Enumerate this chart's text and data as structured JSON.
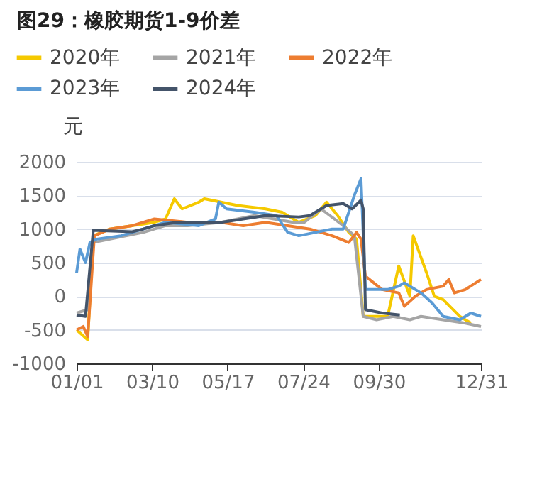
{
  "chart_data": {
    "type": "line",
    "title": "图29：橡胶期货1-9价差",
    "ylabel": "元",
    "xlim": [
      "--01-01",
      "--12-31"
    ],
    "xticks": [
      {
        "value": "--01-01",
        "label": "01/01"
      },
      {
        "value": "--03-10",
        "label": "03/10"
      },
      {
        "value": "--05-17",
        "label": "05/17"
      },
      {
        "value": "--07-24",
        "label": "07/24"
      },
      {
        "value": "--09-30",
        "label": "09/30"
      },
      {
        "value": "--12-31",
        "label": "12/31"
      }
    ],
    "ylim": [
      -1000,
      2000
    ],
    "yticks": [
      -1000,
      -500,
      0,
      500,
      1000,
      1500,
      2000
    ],
    "grid": "y",
    "legend": "top",
    "marker": "none",
    "line_style": "solid",
    "series": [
      {
        "name": "2020年",
        "color": "#f5c900",
        "x": [
          "--01-01",
          "--01-11",
          "--01-16",
          "--01-31",
          "--02-20",
          "--03-12",
          "--03-22",
          "--03-30",
          "--04-06",
          "--04-21",
          "--04-26",
          "--05-11",
          "--05-26",
          "--06-20",
          "--07-05",
          "--07-20",
          "--08-04",
          "--08-14",
          "--08-24",
          "--09-03",
          "--09-10",
          "--09-16",
          "--10-08",
          "--10-18",
          "--10-28",
          "--10-31",
          "--11-12",
          "--11-19",
          "--11-27",
          "--12-12",
          "--12-22"
        ],
        "values": [
          -500,
          -650,
          900,
          1000,
          1050,
          1100,
          1150,
          1450,
          1300,
          1400,
          1450,
          1400,
          1350,
          1300,
          1250,
          1100,
          1200,
          1400,
          1200,
          950,
          850,
          -300,
          -300,
          450,
          0,
          900,
          350,
          0,
          -50,
          -300,
          -400
        ]
      },
      {
        "name": "2021年",
        "color": "#a5a5a5",
        "x": [
          "--01-01",
          "--01-11",
          "--01-16",
          "--01-31",
          "--02-15",
          "--03-02",
          "--03-22",
          "--04-11",
          "--05-11",
          "--06-10",
          "--07-15",
          "--07-25",
          "--08-09",
          "--08-29",
          "--09-08",
          "--09-16",
          "--09-28",
          "--10-13",
          "--10-28",
          "--11-07",
          "--11-27",
          "--12-17",
          "--12-31"
        ],
        "values": [
          -250,
          -200,
          800,
          850,
          900,
          950,
          1050,
          1050,
          1100,
          1200,
          1100,
          1100,
          1300,
          1050,
          900,
          -300,
          -350,
          -300,
          -350,
          -300,
          -350,
          -400,
          -450
        ]
      },
      {
        "name": "2022年",
        "color": "#ed7d31",
        "x": [
          "--01-01",
          "--01-07",
          "--01-11",
          "--01-17",
          "--01-31",
          "--02-20",
          "--03-12",
          "--04-11",
          "--05-11",
          "--05-31",
          "--06-20",
          "--07-10",
          "--07-30",
          "--08-19",
          "--09-03",
          "--09-10",
          "--09-14",
          "--09-18",
          "--10-03",
          "--10-18",
          "--10-23",
          "--11-02",
          "--11-12",
          "--11-27",
          "--12-02",
          "--12-07",
          "--12-17",
          "--12-31"
        ],
        "values": [
          -500,
          -450,
          -600,
          900,
          1000,
          1050,
          1150,
          1100,
          1100,
          1050,
          1100,
          1050,
          1000,
          900,
          800,
          950,
          850,
          300,
          100,
          50,
          -150,
          0,
          100,
          150,
          250,
          50,
          100,
          250
        ]
      },
      {
        "name": "2023年",
        "color": "#5b9bd5",
        "x": [
          "--01-01",
          "--01-04",
          "--01-09",
          "--01-13",
          "--01-19",
          "--02-10",
          "--03-02",
          "--03-22",
          "--04-21",
          "--05-06",
          "--05-09",
          "--05-16",
          "--06-10",
          "--06-30",
          "--07-10",
          "--07-20",
          "--08-04",
          "--08-19",
          "--08-29",
          "--09-08",
          "--09-14",
          "--09-18",
          "--10-08",
          "--10-18",
          "--10-23",
          "--11-07",
          "--11-17",
          "--11-27",
          "--12-12",
          "--12-22",
          "--12-31"
        ],
        "values": [
          350,
          700,
          500,
          800,
          850,
          900,
          1000,
          1100,
          1050,
          1150,
          1400,
          1300,
          1250,
          1200,
          950,
          900,
          950,
          1000,
          1000,
          1500,
          1750,
          100,
          100,
          150,
          200,
          50,
          -100,
          -300,
          -350,
          -250,
          -300
        ]
      },
      {
        "name": "2024年",
        "color": "#44546a",
        "x": [
          "--01-01",
          "--01-09",
          "--01-16",
          "--02-20",
          "--03-02",
          "--03-12",
          "--04-01",
          "--05-11",
          "--05-31",
          "--06-20",
          "--07-20",
          "--07-30",
          "--08-14",
          "--08-29",
          "--09-06",
          "--09-14",
          "--09-16",
          "--09-18",
          "--10-03",
          "--10-19"
        ],
        "values": [
          -280,
          -300,
          980,
          960,
          1000,
          1050,
          1100,
          1100,
          1150,
          1200,
          1180,
          1200,
          1350,
          1380,
          1300,
          1430,
          1300,
          -200,
          -250,
          -280
        ]
      }
    ]
  }
}
